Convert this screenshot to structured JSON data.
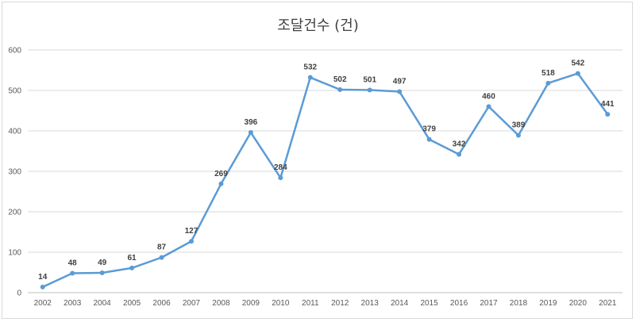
{
  "chart_data": {
    "type": "line",
    "title": "조달건수 (건)",
    "xlabel": "",
    "ylabel": "",
    "categories": [
      "2002",
      "2003",
      "2004",
      "2005",
      "2006",
      "2007",
      "2008",
      "2009",
      "2010",
      "2011",
      "2012",
      "2013",
      "2014",
      "2015",
      "2016",
      "2017",
      "2018",
      "2019",
      "2020",
      "2021"
    ],
    "series": [
      {
        "values": [
          14,
          48,
          49,
          61,
          87,
          127,
          269,
          396,
          284,
          532,
          502,
          501,
          497,
          379,
          342,
          460,
          389,
          518,
          542,
          441
        ]
      }
    ],
    "ylim": [
      0,
      600
    ],
    "yticks": [
      0,
      100,
      200,
      300,
      400,
      500,
      600
    ],
    "grid": true,
    "legend": "none",
    "line_color": "#5b9bd5"
  }
}
